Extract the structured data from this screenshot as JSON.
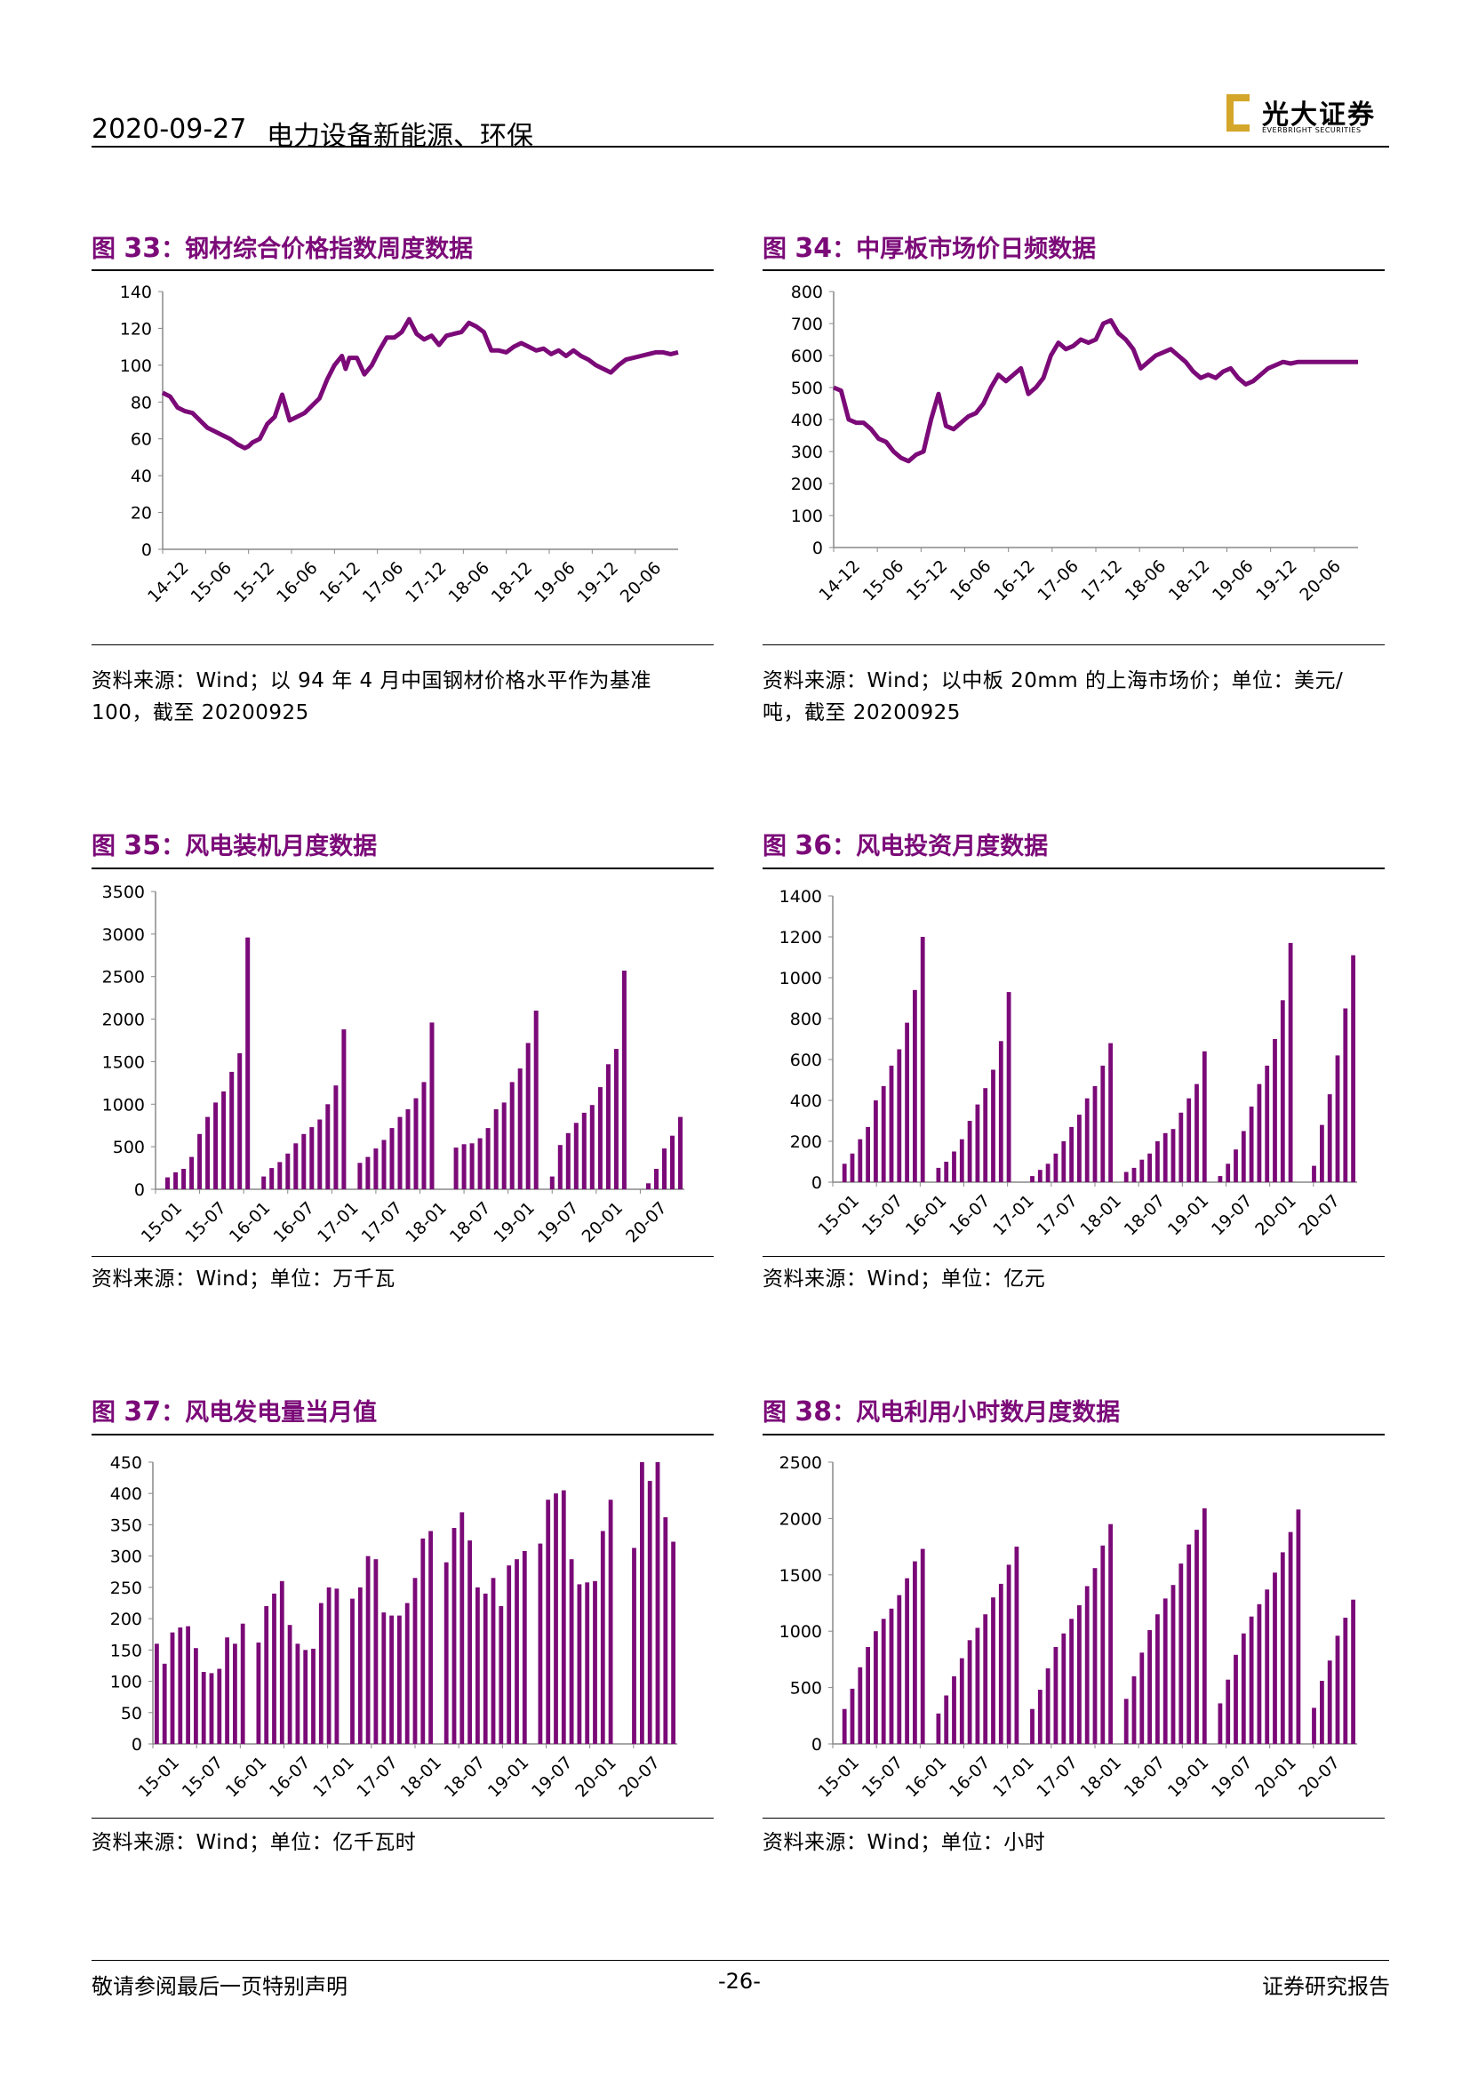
{
  "header": {
    "date": "2020-09-27",
    "sector": "电力设备新能源、环保",
    "logo_cn": "光大证券",
    "logo_en": "EVERBRIGHT SECURITIES"
  },
  "footer": {
    "disclaimer": "敬请参阅最后一页特别声明",
    "page": "-26-",
    "report_type": "证券研究报告"
  },
  "colors": {
    "series": "#7b0a78"
  },
  "figures": [
    {
      "id": "fig33",
      "label": "图",
      "num": "33",
      "title": "：钢材综合价格指数周度数据",
      "source": "资料来源：Wind；以 94 年 4 月中国钢材价格水平作为基准 100，截至 20200925"
    },
    {
      "id": "fig34",
      "label": "图",
      "num": "34",
      "title": "：中厚板市场价日频数据",
      "source": "资料来源：Wind；以中板 20mm 的上海市场价；单位：美元/吨，截至 20200925"
    },
    {
      "id": "fig35",
      "label": "图",
      "num": "35",
      "title": "：风电装机月度数据",
      "source": "资料来源：Wind；单位：万千瓦"
    },
    {
      "id": "fig36",
      "label": "图",
      "num": "36",
      "title": "：风电投资月度数据",
      "source": "资料来源：Wind；单位：亿元"
    },
    {
      "id": "fig37",
      "label": "图",
      "num": "37",
      "title": "：风电发电量当月值",
      "source": "资料来源：Wind；单位：亿千瓦时"
    },
    {
      "id": "fig38",
      "label": "图",
      "num": "38",
      "title": "：风电利用小时数月度数据",
      "source": "资料来源：Wind；单位：小时"
    }
  ],
  "chart_data": [
    {
      "id": "fig33",
      "type": "line",
      "ylim": [
        0,
        140
      ],
      "yticks": [
        0,
        20,
        40,
        60,
        80,
        100,
        120,
        140
      ],
      "xlabels": [
        "14-12",
        "15-06",
        "15-12",
        "16-06",
        "16-12",
        "17-06",
        "17-12",
        "18-06",
        "18-12",
        "19-06",
        "19-12",
        "20-06"
      ],
      "x_span": [
        0,
        69
      ],
      "legend": "none",
      "x": [
        0,
        1,
        2,
        3,
        4,
        5,
        6,
        7,
        8,
        9,
        10,
        11,
        11.5,
        12,
        13,
        14,
        15,
        16,
        17,
        18,
        19,
        20,
        21,
        22,
        23,
        24,
        24.5,
        25,
        26,
        27,
        28,
        29,
        30,
        31,
        32,
        33,
        34,
        35,
        36,
        37,
        38,
        39,
        40,
        41,
        42,
        43,
        44,
        45,
        46,
        47,
        48,
        49,
        50,
        51,
        52,
        53,
        54,
        55,
        56,
        57,
        58,
        59,
        60,
        61,
        62,
        63,
        64,
        65,
        66,
        67,
        68,
        69
      ],
      "values": [
        85,
        83,
        77,
        75,
        74,
        70,
        66,
        64,
        62,
        60,
        57,
        55,
        56,
        58,
        60,
        68,
        72,
        84,
        70,
        72,
        74,
        78,
        82,
        92,
        100,
        105,
        98,
        104,
        104,
        95,
        100,
        108,
        115,
        115,
        118,
        125,
        117,
        114,
        116,
        111,
        116,
        117,
        118,
        123,
        121,
        118,
        108,
        108,
        107,
        110,
        112,
        110,
        108,
        109,
        106,
        108,
        105,
        108,
        105,
        103,
        100,
        98,
        96,
        100,
        103,
        104,
        105,
        106,
        107,
        107,
        106,
        107
      ]
    },
    {
      "id": "fig34",
      "type": "line",
      "ylim": [
        0,
        800
      ],
      "yticks": [
        0,
        100,
        200,
        300,
        400,
        500,
        600,
        700,
        800
      ],
      "xlabels": [
        "14-12",
        "15-06",
        "15-12",
        "16-06",
        "16-12",
        "17-06",
        "17-12",
        "18-06",
        "18-12",
        "19-06",
        "19-12",
        "20-06"
      ],
      "x_span": [
        0,
        70
      ],
      "legend": "none",
      "x": [
        0,
        1,
        2,
        3,
        4,
        5,
        6,
        7,
        8,
        9,
        10,
        11,
        12,
        13,
        14,
        15,
        16,
        17,
        18,
        19,
        20,
        21,
        22,
        23,
        24,
        25,
        26,
        27,
        28,
        29,
        30,
        31,
        32,
        33,
        34,
        35,
        36,
        37,
        38,
        39,
        40,
        41,
        42,
        43,
        44,
        45,
        46,
        47,
        48,
        49,
        50,
        51,
        52,
        53,
        54,
        55,
        56,
        57,
        58,
        59,
        60,
        61,
        62,
        63,
        64,
        65,
        66,
        67,
        68,
        69,
        70
      ],
      "values": [
        500,
        490,
        400,
        390,
        390,
        370,
        340,
        330,
        300,
        280,
        270,
        290,
        300,
        400,
        480,
        380,
        370,
        390,
        410,
        420,
        450,
        500,
        540,
        520,
        540,
        560,
        480,
        500,
        530,
        600,
        640,
        620,
        630,
        650,
        640,
        650,
        700,
        710,
        670,
        650,
        620,
        560,
        580,
        600,
        610,
        620,
        600,
        580,
        550,
        530,
        540,
        530,
        550,
        560,
        530,
        510,
        520,
        540,
        560,
        570,
        580,
        575,
        580,
        580,
        580,
        580,
        580,
        580,
        580,
        580,
        580
      ]
    },
    {
      "id": "fig35",
      "type": "bar",
      "ylim": [
        0,
        3500
      ],
      "yticks": [
        0,
        500,
        1000,
        1500,
        2000,
        2500,
        3000,
        3500
      ],
      "xlabels": [
        "15-01",
        "15-07",
        "16-01",
        "16-07",
        "17-01",
        "17-07",
        "18-01",
        "18-07",
        "19-01",
        "19-07",
        "20-01",
        "20-07"
      ],
      "legend": "none",
      "values": [
        null,
        140,
        200,
        240,
        380,
        650,
        850,
        1020,
        1150,
        1380,
        1600,
        2960,
        null,
        150,
        250,
        320,
        420,
        540,
        650,
        730,
        820,
        1000,
        1220,
        1880,
        null,
        310,
        380,
        480,
        580,
        720,
        850,
        940,
        1070,
        1260,
        1960,
        null,
        null,
        490,
        530,
        540,
        600,
        720,
        940,
        1020,
        1260,
        1420,
        1720,
        2100,
        null,
        150,
        520,
        660,
        780,
        900,
        990,
        1200,
        1470,
        1650,
        2570,
        null,
        null,
        70,
        240,
        480,
        630,
        850
      ]
    },
    {
      "id": "fig36",
      "type": "bar",
      "ylim": [
        0,
        1400
      ],
      "yticks": [
        0,
        200,
        400,
        600,
        800,
        1000,
        1200,
        1400
      ],
      "xlabels": [
        "15-01",
        "15-07",
        "16-01",
        "16-07",
        "17-01",
        "17-07",
        "18-01",
        "18-07",
        "19-01",
        "19-07",
        "20-01",
        "20-07"
      ],
      "legend": "none",
      "values": [
        null,
        90,
        140,
        210,
        270,
        400,
        470,
        570,
        650,
        780,
        940,
        1200,
        null,
        70,
        100,
        150,
        210,
        300,
        380,
        460,
        550,
        690,
        930,
        null,
        null,
        30,
        60,
        90,
        140,
        200,
        270,
        330,
        410,
        470,
        570,
        680,
        null,
        50,
        70,
        110,
        140,
        200,
        240,
        260,
        340,
        410,
        480,
        640,
        null,
        30,
        90,
        160,
        250,
        370,
        480,
        570,
        700,
        890,
        1170,
        null,
        null,
        80,
        280,
        430,
        620,
        850,
        1110
      ]
    },
    {
      "id": "fig37",
      "type": "bar",
      "ylim": [
        0,
        450
      ],
      "yticks": [
        0,
        50,
        100,
        150,
        200,
        250,
        300,
        350,
        400,
        450
      ],
      "xlabels": [
        "15-01",
        "15-07",
        "16-01",
        "16-07",
        "17-01",
        "17-07",
        "18-01",
        "18-07",
        "19-01",
        "19-07",
        "20-01",
        "20-07"
      ],
      "legend": "none",
      "values": [
        160,
        128,
        178,
        186,
        188,
        153,
        115,
        113,
        120,
        170,
        160,
        192,
        null,
        162,
        220,
        240,
        260,
        190,
        160,
        150,
        152,
        225,
        250,
        248,
        null,
        232,
        250,
        300,
        295,
        210,
        205,
        205,
        225,
        265,
        328,
        340,
        null,
        290,
        345,
        370,
        325,
        250,
        240,
        265,
        220,
        285,
        295,
        308,
        null,
        320,
        390,
        400,
        405,
        295,
        255,
        258,
        260,
        340,
        390,
        null,
        null,
        313,
        450,
        420,
        450,
        362,
        323
      ]
    },
    {
      "id": "fig38",
      "type": "bar",
      "ylim": [
        0,
        2500
      ],
      "yticks": [
        0,
        500,
        1000,
        1500,
        2000,
        2500
      ],
      "xlabels": [
        "15-01",
        "15-07",
        "16-01",
        "16-07",
        "17-01",
        "17-07",
        "18-01",
        "18-07",
        "19-01",
        "19-07",
        "20-01",
        "20-07"
      ],
      "legend": "none",
      "values": [
        null,
        310,
        490,
        680,
        860,
        1000,
        1110,
        1200,
        1320,
        1470,
        1620,
        1730,
        null,
        270,
        430,
        600,
        760,
        920,
        1030,
        1150,
        1300,
        1420,
        1590,
        1750,
        null,
        310,
        480,
        670,
        860,
        980,
        1110,
        1230,
        1400,
        1560,
        1760,
        1950,
        null,
        400,
        600,
        810,
        1010,
        1150,
        1290,
        1410,
        1600,
        1770,
        1900,
        2090,
        null,
        360,
        570,
        790,
        980,
        1130,
        1240,
        1370,
        1520,
        1700,
        1880,
        2080,
        null,
        320,
        560,
        740,
        960,
        1120,
        1280
      ]
    }
  ]
}
